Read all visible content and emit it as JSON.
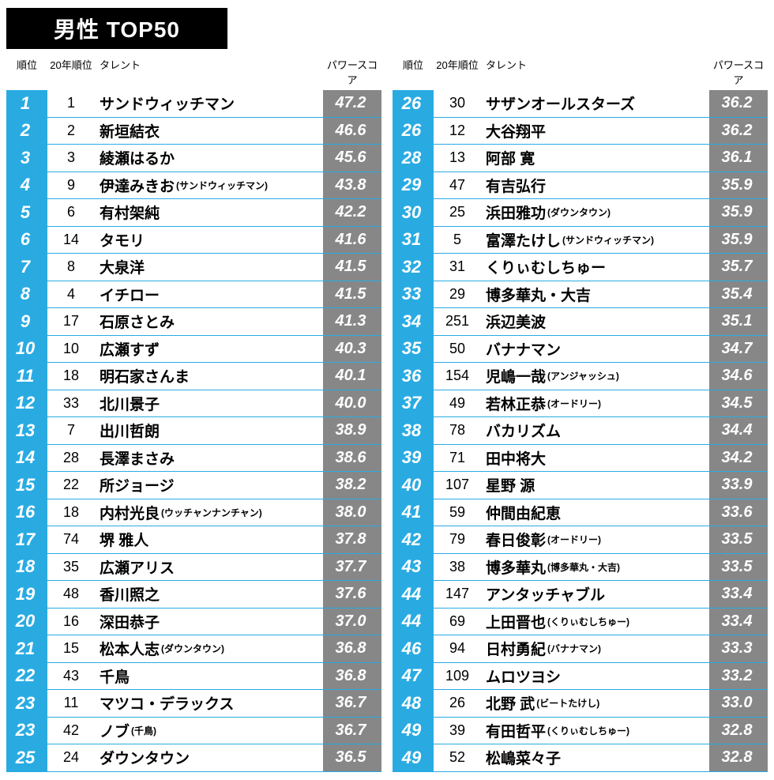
{
  "title": "男性 TOP50",
  "colors": {
    "title_bg": "#000000",
    "title_fg": "#ffffff",
    "rank_bg": "#29abe2",
    "rank_fg": "#ffffff",
    "score_bg": "#878787",
    "score_fg": "#ffffff",
    "row_border": "#29abe2",
    "page_bg": "#ffffff",
    "text": "#000000"
  },
  "headers": {
    "rank": "順位",
    "prev": "20年順位",
    "talent": "タレント",
    "score": "パワースコア"
  },
  "rows_left": [
    {
      "rank": "1",
      "prev": "1",
      "talent": "サンドウィッチマン",
      "sub": "",
      "score": "47.2"
    },
    {
      "rank": "2",
      "prev": "2",
      "talent": "新垣結衣",
      "sub": "",
      "score": "46.6"
    },
    {
      "rank": "3",
      "prev": "3",
      "talent": "綾瀬はるか",
      "sub": "",
      "score": "45.6"
    },
    {
      "rank": "4",
      "prev": "9",
      "talent": "伊達みきお",
      "sub": "(サンドウィッチマン)",
      "score": "43.8"
    },
    {
      "rank": "5",
      "prev": "6",
      "talent": "有村架純",
      "sub": "",
      "score": "42.2"
    },
    {
      "rank": "6",
      "prev": "14",
      "talent": "タモリ",
      "sub": "",
      "score": "41.6"
    },
    {
      "rank": "7",
      "prev": "8",
      "talent": "大泉洋",
      "sub": "",
      "score": "41.5"
    },
    {
      "rank": "8",
      "prev": "4",
      "talent": "イチロー",
      "sub": "",
      "score": "41.5"
    },
    {
      "rank": "9",
      "prev": "17",
      "talent": "石原さとみ",
      "sub": "",
      "score": "41.3"
    },
    {
      "rank": "10",
      "prev": "10",
      "talent": "広瀬すず",
      "sub": "",
      "score": "40.3"
    },
    {
      "rank": "11",
      "prev": "18",
      "talent": "明石家さんま",
      "sub": "",
      "score": "40.1"
    },
    {
      "rank": "12",
      "prev": "33",
      "talent": "北川景子",
      "sub": "",
      "score": "40.0"
    },
    {
      "rank": "13",
      "prev": "7",
      "talent": "出川哲朗",
      "sub": "",
      "score": "38.9"
    },
    {
      "rank": "14",
      "prev": "28",
      "talent": "長澤まさみ",
      "sub": "",
      "score": "38.6"
    },
    {
      "rank": "15",
      "prev": "22",
      "talent": "所ジョージ",
      "sub": "",
      "score": "38.2"
    },
    {
      "rank": "16",
      "prev": "18",
      "talent": "内村光良",
      "sub": "(ウッチャンナンチャン)",
      "score": "38.0"
    },
    {
      "rank": "17",
      "prev": "74",
      "talent": "堺 雅人",
      "sub": "",
      "score": "37.8"
    },
    {
      "rank": "18",
      "prev": "35",
      "talent": "広瀬アリス",
      "sub": "",
      "score": "37.7"
    },
    {
      "rank": "19",
      "prev": "48",
      "talent": "香川照之",
      "sub": "",
      "score": "37.6"
    },
    {
      "rank": "20",
      "prev": "16",
      "talent": "深田恭子",
      "sub": "",
      "score": "37.0"
    },
    {
      "rank": "21",
      "prev": "15",
      "talent": "松本人志",
      "sub": "(ダウンタウン)",
      "score": "36.8"
    },
    {
      "rank": "22",
      "prev": "43",
      "talent": "千鳥",
      "sub": "",
      "score": "36.8"
    },
    {
      "rank": "23",
      "prev": "11",
      "talent": "マツコ・デラックス",
      "sub": "",
      "score": "36.7"
    },
    {
      "rank": "23",
      "prev": "42",
      "talent": "ノブ",
      "sub": "(千鳥)",
      "score": "36.7"
    },
    {
      "rank": "25",
      "prev": "24",
      "talent": "ダウンタウン",
      "sub": "",
      "score": "36.5"
    }
  ],
  "rows_right": [
    {
      "rank": "26",
      "prev": "30",
      "talent": "サザンオールスターズ",
      "sub": "",
      "score": "36.2"
    },
    {
      "rank": "26",
      "prev": "12",
      "talent": "大谷翔平",
      "sub": "",
      "score": "36.2"
    },
    {
      "rank": "28",
      "prev": "13",
      "talent": "阿部 寛",
      "sub": "",
      "score": "36.1"
    },
    {
      "rank": "29",
      "prev": "47",
      "talent": "有吉弘行",
      "sub": "",
      "score": "35.9"
    },
    {
      "rank": "30",
      "prev": "25",
      "talent": "浜田雅功",
      "sub": "(ダウンタウン)",
      "score": "35.9"
    },
    {
      "rank": "31",
      "prev": "5",
      "talent": "富澤たけし",
      "sub": "(サンドウィッチマン)",
      "score": "35.9"
    },
    {
      "rank": "32",
      "prev": "31",
      "talent": "くりぃむしちゅー",
      "sub": "",
      "score": "35.7"
    },
    {
      "rank": "33",
      "prev": "29",
      "talent": "博多華丸・大吉",
      "sub": "",
      "score": "35.4"
    },
    {
      "rank": "34",
      "prev": "251",
      "talent": "浜辺美波",
      "sub": "",
      "score": "35.1"
    },
    {
      "rank": "35",
      "prev": "50",
      "talent": "バナナマン",
      "sub": "",
      "score": "34.7"
    },
    {
      "rank": "36",
      "prev": "154",
      "talent": "児嶋一哉",
      "sub": "(アンジャッシュ)",
      "score": "34.6"
    },
    {
      "rank": "37",
      "prev": "49",
      "talent": "若林正恭",
      "sub": "(オードリー)",
      "score": "34.5"
    },
    {
      "rank": "38",
      "prev": "78",
      "talent": "バカリズム",
      "sub": "",
      "score": "34.4"
    },
    {
      "rank": "39",
      "prev": "71",
      "talent": "田中将大",
      "sub": "",
      "score": "34.2"
    },
    {
      "rank": "40",
      "prev": "107",
      "talent": "星野 源",
      "sub": "",
      "score": "33.9"
    },
    {
      "rank": "41",
      "prev": "59",
      "talent": "仲間由紀恵",
      "sub": "",
      "score": "33.6"
    },
    {
      "rank": "42",
      "prev": "79",
      "talent": "春日俊彰",
      "sub": "(オードリー)",
      "score": "33.5"
    },
    {
      "rank": "43",
      "prev": "38",
      "talent": "博多華丸",
      "sub": "(博多華丸・大吉)",
      "score": "33.5"
    },
    {
      "rank": "44",
      "prev": "147",
      "talent": "アンタッチャブル",
      "sub": "",
      "score": "33.4"
    },
    {
      "rank": "44",
      "prev": "69",
      "talent": "上田晋也",
      "sub": "(くりぃむしちゅー)",
      "score": "33.4"
    },
    {
      "rank": "46",
      "prev": "94",
      "talent": "日村勇紀",
      "sub": "(バナナマン)",
      "score": "33.3"
    },
    {
      "rank": "47",
      "prev": "109",
      "talent": "ムロツヨシ",
      "sub": "",
      "score": "33.2"
    },
    {
      "rank": "48",
      "prev": "26",
      "talent": "北野 武",
      "sub": "(ビートたけし)",
      "score": "33.0"
    },
    {
      "rank": "49",
      "prev": "39",
      "talent": "有田哲平",
      "sub": "(くりぃむしちゅー)",
      "score": "32.8"
    },
    {
      "rank": "49",
      "prev": "52",
      "talent": "松嶋菜々子",
      "sub": "",
      "score": "32.8"
    }
  ]
}
